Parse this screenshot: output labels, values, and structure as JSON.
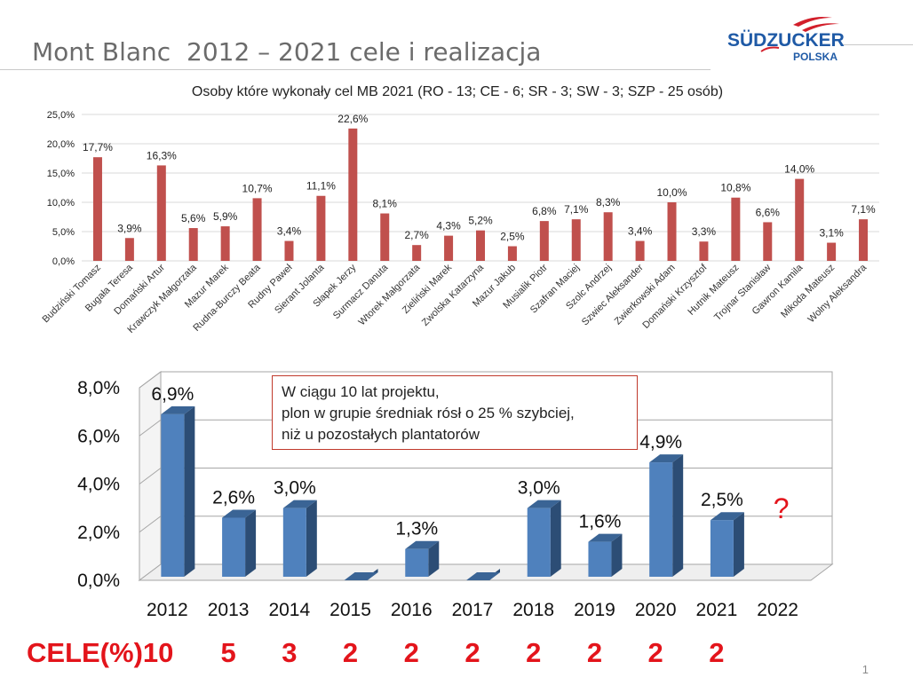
{
  "slide": {
    "title": "Mont Blanc  2012 – 2021 cele i realizacja",
    "page_number": "1",
    "logo": {
      "brand": "SÜDZUCKER",
      "sub": "POLSKA",
      "color_brand": "#1f5aa6",
      "color_swoosh": "#d21f2b"
    }
  },
  "annotation": {
    "lines": [
      "W ciągu 10 lat projektu,",
      "plon w grupie średniak rósł o 25 % szybciej,",
      "niż u pozostałych plantatorów"
    ]
  },
  "targets": {
    "label": "CELE(%)10",
    "values": [
      {
        "year": "2013",
        "value": "5"
      },
      {
        "year": "2014",
        "value": "3"
      },
      {
        "year": "2015",
        "value": "2"
      },
      {
        "year": "2016",
        "value": "2"
      },
      {
        "year": "2017",
        "value": "2"
      },
      {
        "year": "2018",
        "value": "2"
      },
      {
        "year": "2019",
        "value": "2"
      },
      {
        "year": "2020",
        "value": "2"
      },
      {
        "year": "2021",
        "value": "2"
      }
    ]
  },
  "chart_data": [
    {
      "type": "bar",
      "title": "Osoby które wykonały cel MB 2021 (RO - 13; CE - 6; SR - 3; SW - 3; SZP - 25 osób)",
      "categories": [
        "Budziński Tomasz",
        "Bugała Teresa",
        "Domański Artur",
        "Krawczyk Małgorzata",
        "Mazur Marek",
        "Rudna-Burczy Beata",
        "Rudny Paweł",
        "Sierant Jolanta",
        "Słapek Jerzy",
        "Surmacz Danuta",
        "Wtorek Małgorzata",
        "Zieliński Marek",
        "Zwolska Katarzyna",
        "Mazur Jakub",
        "Musialik Piotr",
        "Szafran Maciej",
        "Szolc Andrzej",
        "Szwiec Aleksander",
        "Zwierkowski Adam",
        "Domański Krzysztof",
        "Hutnik Mateusz",
        "Trojnar Stanisław",
        "Gawron Kamila",
        "Mikoda Mateusz",
        "Wolny Aleksandra"
      ],
      "values": [
        17.7,
        3.9,
        16.3,
        5.6,
        5.9,
        10.7,
        3.4,
        11.1,
        22.6,
        8.1,
        2.7,
        4.3,
        5.2,
        2.5,
        6.8,
        7.1,
        8.3,
        3.4,
        10.0,
        3.3,
        10.8,
        6.6,
        14.0,
        3.1,
        7.1
      ],
      "value_labels": [
        "17,7%",
        "3,9%",
        "16,3%",
        "5,6%",
        "5,9%",
        "10,7%",
        "3,4%",
        "11,1%",
        "22,6%",
        "8,1%",
        "2,7%",
        "4,3%",
        "5,2%",
        "2,5%",
        "6,8%",
        "7,1%",
        "8,3%",
        "3,4%",
        "10,0%",
        "3,3%",
        "10,8%",
        "6,6%",
        "14,0%",
        "3,1%",
        "7,1%"
      ],
      "ylim": [
        0,
        25
      ],
      "yticks": [
        "0,0%",
        "5,0%",
        "10,0%",
        "15,0%",
        "20,0%",
        "25,0%"
      ],
      "color": "#c0504d",
      "grid": true
    },
    {
      "type": "bar",
      "categories": [
        "2012",
        "2013",
        "2014",
        "2015",
        "2016",
        "2017",
        "2018",
        "2019",
        "2020",
        "2021",
        "2022"
      ],
      "values": [
        6.9,
        2.6,
        3.0,
        0,
        1.3,
        0,
        3.0,
        1.6,
        4.9,
        2.5,
        null
      ],
      "value_labels": [
        "6,9%",
        "2,6%",
        "3,0%",
        "",
        "1,3%",
        "",
        "3,0%",
        "1,6%",
        "4,9%",
        "2,5%",
        "?"
      ],
      "ylim": [
        0,
        8
      ],
      "yticks": [
        "0,0%",
        "2,0%",
        "4,0%",
        "6,0%",
        "8,0%"
      ],
      "color": "#4f81bd",
      "question_color": "#e3141b",
      "grid": true
    }
  ]
}
